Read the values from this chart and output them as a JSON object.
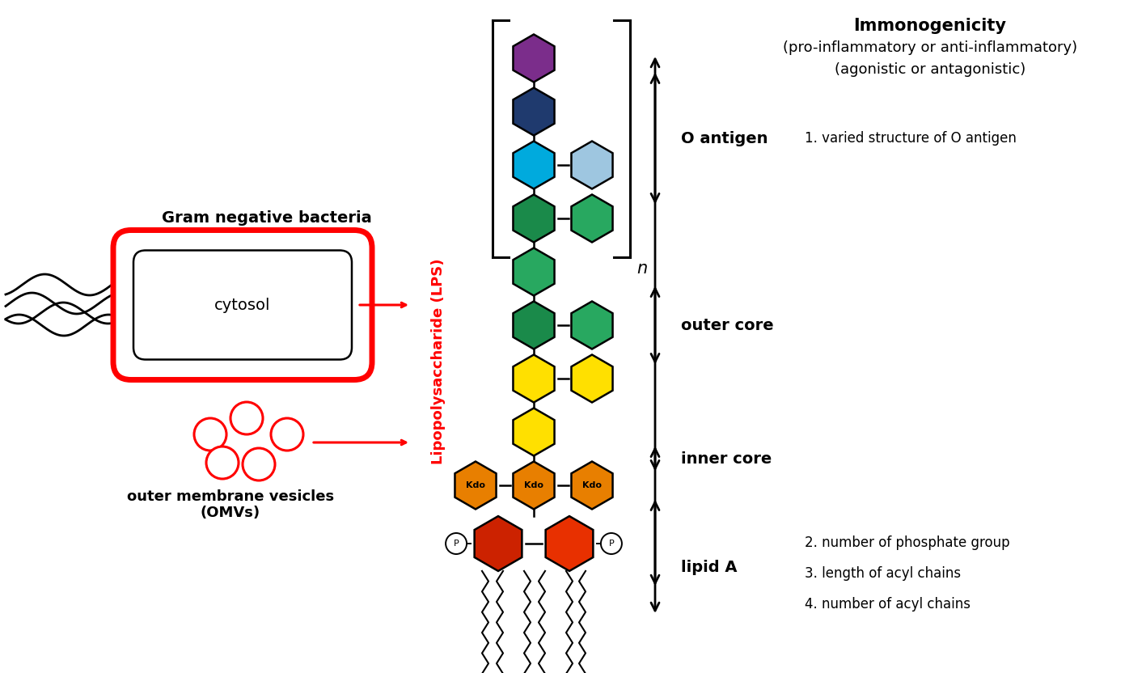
{
  "bg_color": "#ffffff",
  "lps_label": "Lipopolysaccharide (LPS)",
  "lps_label_color": "#ff0000",
  "immunogenicity_title": "Immonogenicity",
  "immunogenicity_sub1": "(pro-inflammatory or anti-inflammatory)",
  "immunogenicity_sub2": "(agonistic or antagonistic)",
  "o_antigen_label": "O antigen",
  "outer_core_label": "outer core",
  "inner_core_label": "inner core",
  "lipid_a_label": "lipid A",
  "note1": "1. varied structure of O antigen",
  "note2": "2. number of phosphate group",
  "note3": "3. length of acyl chains",
  "note4": "4. number of acyl chains",
  "bacteria_label": "Gram negative bacteria",
  "cytosol_label": "cytosol",
  "omv_label": "outer membrane vesicles\n(OMVs)",
  "hex_colors": {
    "purple": "#7B2D8B",
    "dark_navy": "#1F3A6E",
    "cyan": "#00AADD",
    "light_blue": "#9EC6E0",
    "dark_green": "#1A8A4A",
    "medium_green": "#28A860",
    "yellow": "#FFE000",
    "orange": "#E87F00",
    "red": "#CC2200",
    "orange_red": "#E83000"
  },
  "fig_w": 14.17,
  "fig_h": 8.32,
  "dpi": 100
}
